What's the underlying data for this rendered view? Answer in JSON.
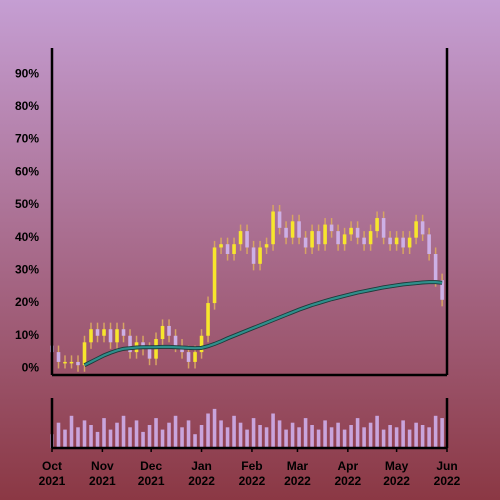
{
  "chart_data": {
    "type": "candlestick",
    "x": [
      "2021-10-01",
      "2021-10-05",
      "2021-10-09",
      "2021-10-13",
      "2021-10-17",
      "2021-10-21",
      "2021-10-25",
      "2021-10-29",
      "2021-11-02",
      "2021-11-06",
      "2021-11-10",
      "2021-11-14",
      "2021-11-18",
      "2021-11-22",
      "2021-11-26",
      "2021-11-30",
      "2021-12-04",
      "2021-12-08",
      "2021-12-12",
      "2021-12-16",
      "2021-12-20",
      "2021-12-24",
      "2021-12-28",
      "2022-01-01",
      "2022-01-05",
      "2022-01-09",
      "2022-01-13",
      "2022-01-17",
      "2022-01-21",
      "2022-01-25",
      "2022-01-29",
      "2022-02-02",
      "2022-02-06",
      "2022-02-10",
      "2022-02-14",
      "2022-02-18",
      "2022-02-22",
      "2022-02-26",
      "2022-03-02",
      "2022-03-06",
      "2022-03-10",
      "2022-03-14",
      "2022-03-18",
      "2022-03-22",
      "2022-03-26",
      "2022-03-30",
      "2022-04-03",
      "2022-04-07",
      "2022-04-11",
      "2022-04-15",
      "2022-04-19",
      "2022-04-23",
      "2022-04-27",
      "2022-05-01",
      "2022-05-05",
      "2022-05-09",
      "2022-05-13",
      "2022-05-17",
      "2022-05-21",
      "2022-05-25",
      "2022-05-29"
    ],
    "open": [
      7,
      5,
      2,
      2,
      2,
      1,
      8,
      12,
      10,
      12,
      8,
      12,
      10,
      5,
      8,
      6,
      3,
      9,
      13,
      10,
      7,
      5,
      2,
      5,
      10,
      20,
      37,
      38,
      35,
      38,
      42,
      37,
      32,
      37,
      38,
      48,
      43,
      40,
      45,
      40,
      37,
      42,
      38,
      44,
      42,
      38,
      41,
      43,
      40,
      38,
      42,
      46,
      40,
      38,
      40,
      37,
      40,
      45,
      41,
      35,
      27
    ],
    "high": [
      9,
      7,
      4,
      4,
      4,
      10,
      14,
      14,
      14,
      14,
      14,
      14,
      12,
      10,
      10,
      8,
      11,
      15,
      15,
      12,
      9,
      7,
      7,
      12,
      22,
      39,
      40,
      40,
      40,
      44,
      44,
      39,
      39,
      40,
      50,
      50,
      45,
      47,
      47,
      42,
      44,
      44,
      46,
      46,
      44,
      43,
      45,
      45,
      42,
      44,
      48,
      48,
      42,
      42,
      42,
      42,
      47,
      47,
      43,
      37,
      29
    ],
    "low": [
      3,
      0,
      0,
      0,
      -1,
      -1,
      6,
      8,
      8,
      6,
      6,
      8,
      3,
      3,
      4,
      1,
      1,
      7,
      8,
      5,
      3,
      0,
      0,
      3,
      8,
      18,
      35,
      33,
      33,
      36,
      35,
      30,
      30,
      35,
      36,
      41,
      38,
      38,
      38,
      35,
      35,
      36,
      36,
      40,
      36,
      36,
      39,
      38,
      36,
      36,
      40,
      38,
      36,
      36,
      35,
      35,
      38,
      39,
      33,
      25,
      19
    ],
    "close": [
      5,
      2,
      2,
      2,
      1,
      8,
      12,
      10,
      12,
      8,
      12,
      10,
      5,
      8,
      6,
      3,
      9,
      13,
      10,
      7,
      5,
      2,
      5,
      10,
      20,
      37,
      38,
      35,
      38,
      42,
      37,
      32,
      37,
      38,
      48,
      43,
      40,
      45,
      40,
      37,
      42,
      38,
      44,
      42,
      38,
      41,
      43,
      40,
      38,
      42,
      46,
      40,
      38,
      40,
      37,
      40,
      45,
      41,
      35,
      27,
      21
    ],
    "up_color": "#f7e62c",
    "down_color": "#cdb0e6",
    "wick_color": "#d7a463",
    "moving_average": {
      "color": "#2f8f8c",
      "values": [
        null,
        null,
        null,
        null,
        null,
        1,
        2,
        3,
        4,
        4.8,
        5.5,
        6,
        6.2,
        6.4,
        6.5,
        6.5,
        6.5,
        6.6,
        6.6,
        6.5,
        6.4,
        6.3,
        6.2,
        6.3,
        6.8,
        7.5,
        8.3,
        9.2,
        10,
        10.8,
        11.6,
        12.4,
        13.2,
        14,
        14.8,
        15.6,
        16.4,
        17.2,
        18,
        18.7,
        19.4,
        20,
        20.6,
        21.2,
        21.7,
        22.2,
        22.7,
        23.2,
        23.6,
        24,
        24.4,
        24.8,
        25.1,
        25.4,
        25.7,
        25.9,
        26.1,
        26.3,
        26.4,
        26.4,
        26.2
      ]
    },
    "volume": {
      "color": "#c9a4dc",
      "ylim": [
        0,
        100
      ],
      "values": [
        30,
        55,
        40,
        70,
        45,
        60,
        50,
        35,
        65,
        40,
        55,
        70,
        45,
        60,
        35,
        50,
        65,
        40,
        55,
        70,
        45,
        60,
        30,
        50,
        75,
        85,
        60,
        45,
        70,
        55,
        40,
        65,
        50,
        45,
        75,
        60,
        40,
        55,
        45,
        65,
        50,
        40,
        60,
        45,
        55,
        40,
        50,
        65,
        45,
        55,
        70,
        40,
        50,
        45,
        60,
        40,
        55,
        50,
        45,
        70,
        65
      ]
    },
    "xlim": [
      "2021-10-01",
      "2022-06-01"
    ],
    "xticks": [
      {
        "value": "2021-10-01",
        "label": "Oct\n2021"
      },
      {
        "value": "2021-11-01",
        "label": "Nov\n2021"
      },
      {
        "value": "2021-12-01",
        "label": "Dec\n2021"
      },
      {
        "value": "2022-01-01",
        "label": "Jan\n2022"
      },
      {
        "value": "2022-02-01",
        "label": "Feb\n2022"
      },
      {
        "value": "2022-03-01",
        "label": "Mar\n2022"
      },
      {
        "value": "2022-04-01",
        "label": "Apr\n2022"
      },
      {
        "value": "2022-05-01",
        "label": "May\n2022"
      },
      {
        "value": "2022-06-01",
        "label": "Jun\n2022"
      }
    ],
    "ylim": [
      -2,
      98
    ],
    "yticks": [
      {
        "value": 0,
        "label": "0%"
      },
      {
        "value": 10,
        "label": "10%"
      },
      {
        "value": 20,
        "label": "20%"
      },
      {
        "value": 30,
        "label": "30%"
      },
      {
        "value": 40,
        "label": "40%"
      },
      {
        "value": 50,
        "label": "50%"
      },
      {
        "value": 60,
        "label": "60%"
      },
      {
        "value": 70,
        "label": "70%"
      },
      {
        "value": 80,
        "label": "80%"
      },
      {
        "value": 90,
        "label": "90%"
      }
    ]
  }
}
